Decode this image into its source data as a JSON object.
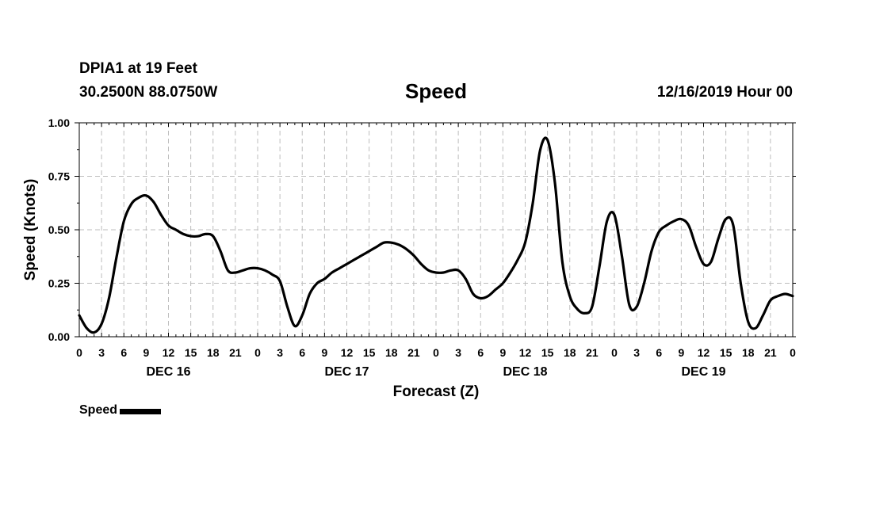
{
  "header": {
    "station": "DPIA1 at 19 Feet",
    "coordinates": "30.2500N 88.0750W",
    "title": "Speed",
    "datetime": "12/16/2019 Hour 00"
  },
  "legend": {
    "label": "Speed",
    "color": "#000000"
  },
  "chart_data": {
    "type": "line",
    "title": "Speed",
    "xlabel": "Forecast (Z)",
    "ylabel": "Speed (Knots)",
    "xlim": [
      0,
      96
    ],
    "ylim": [
      0,
      1.0
    ],
    "yticks": [
      "0.00",
      "0.25",
      "0.50",
      "0.75",
      "1.00"
    ],
    "xtick_labels": [
      "0",
      "3",
      "6",
      "9",
      "12",
      "15",
      "18",
      "21",
      "0",
      "3",
      "6",
      "9",
      "12",
      "15",
      "18",
      "21",
      "0",
      "3",
      "6",
      "9",
      "12",
      "15",
      "18",
      "21",
      "0",
      "3",
      "6",
      "9",
      "12",
      "15",
      "18",
      "21",
      "0"
    ],
    "day_labels": [
      {
        "label": "DEC 16",
        "hour": 12
      },
      {
        "label": "DEC 17",
        "hour": 36
      },
      {
        "label": "DEC 18",
        "hour": 60
      },
      {
        "label": "DEC 19",
        "hour": 84
      }
    ],
    "grid": true,
    "legend_position": "bottom-left",
    "series": [
      {
        "name": "Speed",
        "color": "#000000",
        "x": [
          0,
          1,
          2,
          3,
          4,
          5,
          6,
          7,
          8,
          9,
          10,
          11,
          12,
          13,
          14,
          15,
          16,
          17,
          18,
          19,
          20,
          21,
          22,
          23,
          24,
          25,
          26,
          27,
          28,
          29,
          30,
          31,
          32,
          33,
          34,
          35,
          36,
          37,
          38,
          39,
          40,
          41,
          42,
          43,
          44,
          45,
          46,
          47,
          48,
          49,
          50,
          51,
          52,
          53,
          54,
          55,
          56,
          57,
          58,
          59,
          60,
          61,
          62,
          63,
          64,
          65,
          66,
          67,
          68,
          69,
          70,
          71,
          72,
          73,
          74,
          75,
          76,
          77,
          78,
          79,
          80,
          81,
          82,
          83,
          84,
          85,
          86,
          87,
          88,
          89,
          90,
          91,
          92,
          93,
          94,
          95,
          96
        ],
        "values": [
          0.1,
          0.04,
          0.02,
          0.06,
          0.18,
          0.37,
          0.54,
          0.62,
          0.65,
          0.66,
          0.63,
          0.57,
          0.52,
          0.5,
          0.48,
          0.47,
          0.47,
          0.48,
          0.47,
          0.4,
          0.31,
          0.3,
          0.31,
          0.32,
          0.32,
          0.31,
          0.29,
          0.26,
          0.14,
          0.05,
          0.1,
          0.2,
          0.25,
          0.27,
          0.3,
          0.32,
          0.34,
          0.36,
          0.38,
          0.4,
          0.42,
          0.44,
          0.44,
          0.43,
          0.41,
          0.38,
          0.34,
          0.31,
          0.3,
          0.3,
          0.31,
          0.31,
          0.27,
          0.2,
          0.18,
          0.19,
          0.22,
          0.25,
          0.3,
          0.36,
          0.44,
          0.62,
          0.87,
          0.92,
          0.72,
          0.35,
          0.19,
          0.13,
          0.11,
          0.14,
          0.33,
          0.54,
          0.57,
          0.38,
          0.15,
          0.14,
          0.25,
          0.4,
          0.49,
          0.52,
          0.54,
          0.55,
          0.52,
          0.42,
          0.34,
          0.35,
          0.46,
          0.55,
          0.52,
          0.25,
          0.07,
          0.04,
          0.1,
          0.17,
          0.19,
          0.2,
          0.19
        ]
      }
    ]
  }
}
